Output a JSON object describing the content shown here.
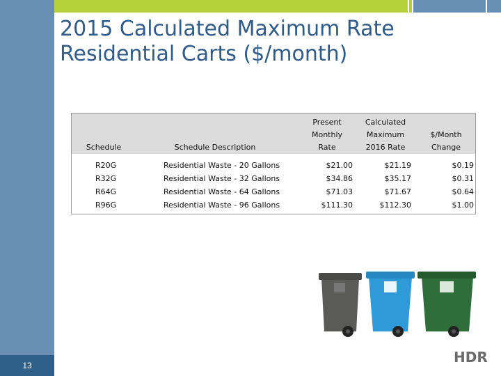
{
  "slide": {
    "title_line1": "2015 Calculated Maximum Rate",
    "title_line2": "Residential  Carts ($/month)",
    "page_number": "13"
  },
  "table": {
    "headers": {
      "schedule": [
        "",
        "",
        "Schedule"
      ],
      "description": [
        "",
        "",
        "Schedule Description"
      ],
      "present": [
        "Present",
        "Monthly",
        "Rate"
      ],
      "calculated": [
        "Calculated",
        "Maximum",
        "2016 Rate"
      ],
      "change": [
        "",
        "$/Month",
        "Change"
      ]
    },
    "rows": [
      {
        "schedule": "R20G",
        "description": "Residential Waste - 20 Gallons",
        "present": "$21.00",
        "calculated": "$21.19",
        "change": "$0.19"
      },
      {
        "schedule": "R32G",
        "description": "Residential Waste - 32 Gallons",
        "present": "$34.86",
        "calculated": "$35.17",
        "change": "$0.31"
      },
      {
        "schedule": "R64G",
        "description": "Residential Waste - 64 Gallons",
        "present": "$71.03",
        "calculated": "$71.67",
        "change": "$0.64"
      },
      {
        "schedule": "R96G",
        "description": "Residential Waste - 96 Gallons",
        "present": "$111.30",
        "calculated": "$112.30",
        "change": "$1.00"
      }
    ]
  },
  "images": {
    "carts": [
      {
        "name": "gray-cart",
        "color": "#5a5a58"
      },
      {
        "name": "blue-cart",
        "color": "#2e9bd8"
      },
      {
        "name": "green-cart",
        "color": "#2f6e3a"
      }
    ]
  },
  "logo": {
    "text": "HDR",
    "color": "#6b6b6b"
  },
  "colors": {
    "accent_blue": "#6a8fb4",
    "accent_green": "#b6d03a",
    "title_blue": "#2f5b8a"
  }
}
